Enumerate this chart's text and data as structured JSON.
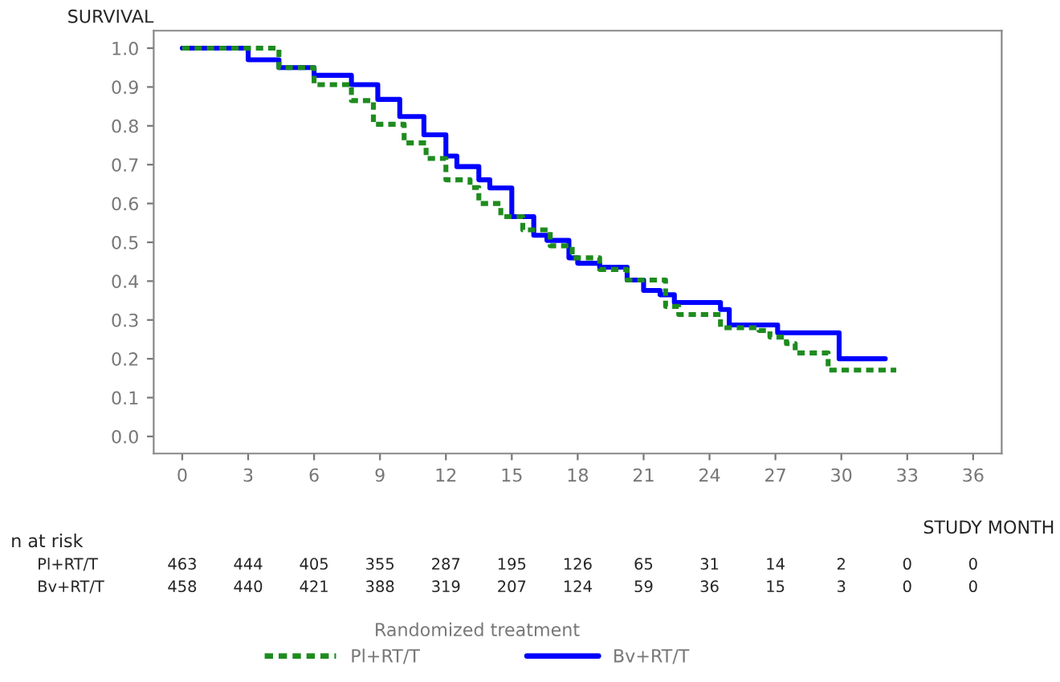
{
  "chart_data": {
    "type": "step",
    "ylabel": "SURVIVAL",
    "xlabel": "STUDY MONTH",
    "legend_title": "Randomized treatment",
    "series": [
      {
        "name": "Pl+RT/T",
        "color": "#1e8c1e",
        "line_style": "dashed",
        "x": [
          0,
          4.4,
          6.0,
          7.7,
          8.7,
          10.1,
          11.1,
          12.0,
          13.1,
          13.5,
          14.5,
          15.5,
          16.75,
          17.75,
          19,
          20.25,
          22,
          22.6,
          24,
          24.5,
          26.25,
          26.75,
          27.5,
          27.9,
          29.1,
          29.4,
          32.5
        ],
        "values": [
          1.0,
          0.95,
          0.906,
          0.865,
          0.804,
          0.756,
          0.716,
          0.661,
          0.641,
          0.6,
          0.566,
          0.532,
          0.491,
          0.46,
          0.43,
          0.403,
          0.335,
          0.314,
          0.314,
          0.28,
          0.273,
          0.256,
          0.239,
          0.215,
          0.215,
          0.171,
          0.171
        ]
      },
      {
        "name": "Bv+RT/T",
        "color": "#0000ff",
        "line_style": "solid",
        "x": [
          0,
          3.0,
          4.4,
          6.0,
          7.7,
          8.9,
          9.9,
          11.0,
          12.0,
          12.5,
          13.5,
          14.0,
          15.0,
          16.0,
          16.6,
          17.6,
          18.0,
          19.0,
          20.25,
          21.0,
          21.75,
          22.4,
          23.9,
          24.5,
          24.9,
          27.0,
          27.1,
          29.9,
          32.0
        ],
        "values": [
          1.0,
          0.97,
          0.95,
          0.93,
          0.906,
          0.868,
          0.824,
          0.777,
          0.722,
          0.695,
          0.661,
          0.64,
          0.566,
          0.518,
          0.505,
          0.46,
          0.446,
          0.436,
          0.403,
          0.376,
          0.365,
          0.345,
          0.345,
          0.327,
          0.287,
          0.287,
          0.267,
          0.2,
          0.2
        ]
      }
    ],
    "xlim": [
      -1.3,
      37.3
    ],
    "ylim": [
      -0.044,
      1.045
    ],
    "xticks": [
      0,
      3,
      6,
      9,
      12,
      15,
      18,
      21,
      24,
      27,
      30,
      33,
      36
    ],
    "yticks": [
      {
        "value": 0,
        "label": "0.0"
      },
      {
        "value": 0.1,
        "label": "0.1"
      },
      {
        "value": 0.2,
        "label": "0.2"
      },
      {
        "value": 0.3,
        "label": "0.3"
      },
      {
        "value": 0.4,
        "label": "0.4"
      },
      {
        "value": 0.5,
        "label": "0.5"
      },
      {
        "value": 0.6,
        "label": "0.6"
      },
      {
        "value": 0.7,
        "label": "0.7"
      },
      {
        "value": 0.8,
        "label": "0.8"
      },
      {
        "value": 0.9,
        "label": "0.9"
      },
      {
        "value": 1.0,
        "label": "1.0"
      }
    ],
    "annotations": [
      "n at risk",
      "Pl+RT/T 463 444 405 355 287 195 126 65 31 14 2 0 0",
      "Bv+RT/T 458 440 421 388 319 207 124 59 36 15 3 0 0"
    ],
    "grid": false,
    "legend": "bottom"
  }
}
